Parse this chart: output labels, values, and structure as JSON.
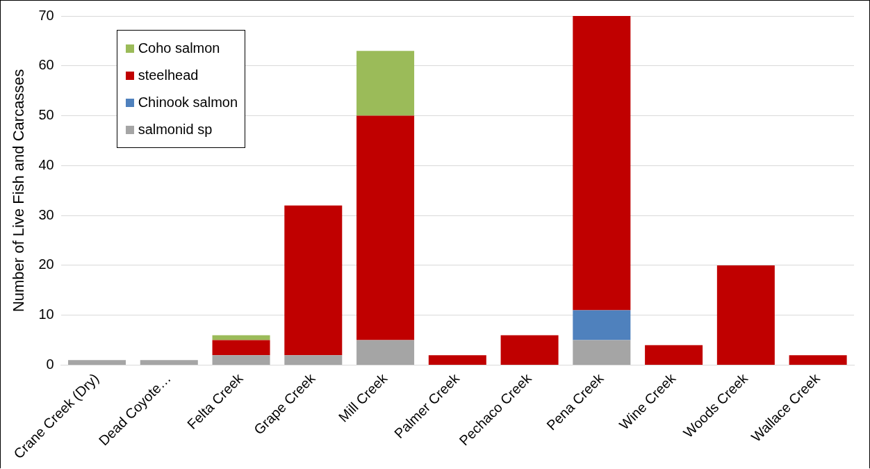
{
  "chart_data": {
    "type": "bar",
    "stacked": true,
    "ylabel": "Number of Live Fish and Carcasses",
    "categories": [
      "Crane Creek (Dry)",
      "Dead Coyote…",
      "Felta Creek",
      "Grape Creek",
      "Mill Creek",
      "Palmer Creek",
      "Pechaco Creek",
      "Pena Creek",
      "Wine Creek",
      "Woods Creek",
      "Wallace Creek"
    ],
    "series": [
      {
        "name": "salmonid sp",
        "color": "#a5a5a5",
        "values": [
          1,
          1,
          2,
          2,
          5,
          0,
          0,
          5,
          0,
          0,
          0
        ]
      },
      {
        "name": "Chinook salmon",
        "color": "#4f81bd",
        "values": [
          0,
          0,
          0,
          0,
          0,
          0,
          0,
          6,
          0,
          0,
          0
        ]
      },
      {
        "name": "steelhead",
        "color": "#c00000",
        "values": [
          0,
          0,
          3,
          30,
          45,
          2,
          6,
          59,
          4,
          20,
          2
        ]
      },
      {
        "name": "Coho salmon",
        "color": "#9bbb59",
        "values": [
          0,
          0,
          1,
          0,
          13,
          0,
          0,
          0,
          0,
          0,
          0
        ]
      }
    ],
    "ylim": [
      0,
      70
    ],
    "yticks": [
      0,
      10,
      20,
      30,
      40,
      50,
      60,
      70
    ],
    "grid": "y",
    "legend": "top left"
  }
}
